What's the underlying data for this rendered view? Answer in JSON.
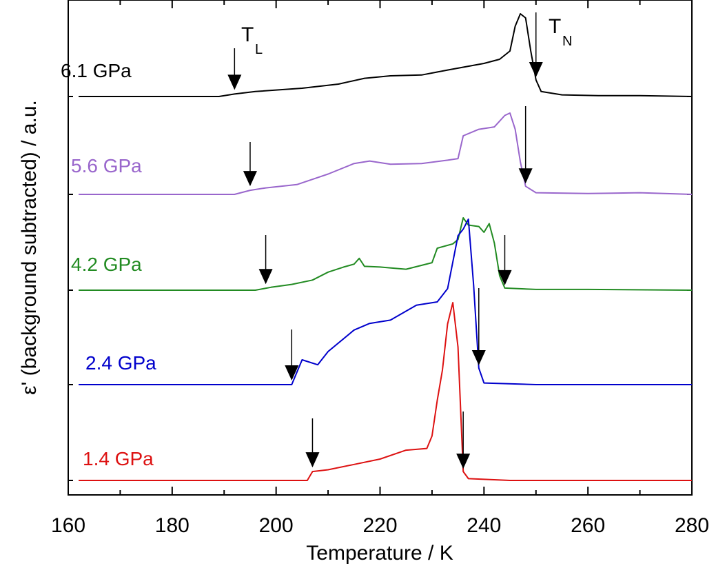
{
  "chart_data": {
    "type": "line",
    "title": "",
    "xlabel": "Temperature / K",
    "ylabel": "ε' (background subtracted) / a.u.",
    "xlim": [
      160,
      280
    ],
    "xticks": [
      160,
      180,
      200,
      220,
      240,
      260,
      280
    ],
    "xtick_labels": [
      "160",
      "180",
      "200",
      "220",
      "240",
      "260",
      "280"
    ],
    "grid": false,
    "y_ticks_labeled": false,
    "annotations": {
      "TL": "T",
      "TL_sub": "L",
      "TN": "T",
      "TN_sub": "N"
    },
    "series": [
      {
        "name": "6.1 GPa",
        "color": "#000000",
        "TL": 192,
        "TN": 250,
        "points": [
          [
            162,
            0
          ],
          [
            189,
            0
          ],
          [
            192,
            0.03
          ],
          [
            196,
            0.06
          ],
          [
            205,
            0.1
          ],
          [
            212,
            0.15
          ],
          [
            217,
            0.22
          ],
          [
            222,
            0.25
          ],
          [
            228,
            0.26
          ],
          [
            233,
            0.32
          ],
          [
            240,
            0.4
          ],
          [
            243,
            0.45
          ],
          [
            245,
            0.55
          ],
          [
            246,
            0.85
          ],
          [
            247,
            1.0
          ],
          [
            248,
            0.95
          ],
          [
            249,
            0.55
          ],
          [
            250,
            0.2
          ],
          [
            251,
            0.06
          ],
          [
            255,
            0.02
          ],
          [
            262,
            0.01
          ],
          [
            270,
            0.01
          ],
          [
            280,
            0
          ]
        ]
      },
      {
        "name": "5.6 GPa",
        "color": "#9966cc",
        "TL": 195,
        "TN": 248,
        "points": [
          [
            162,
            0
          ],
          [
            192,
            0
          ],
          [
            195,
            0.05
          ],
          [
            198,
            0.08
          ],
          [
            204,
            0.12
          ],
          [
            210,
            0.25
          ],
          [
            215,
            0.38
          ],
          [
            218,
            0.41
          ],
          [
            222,
            0.37
          ],
          [
            228,
            0.38
          ],
          [
            233,
            0.42
          ],
          [
            235,
            0.44
          ],
          [
            236,
            0.72
          ],
          [
            239,
            0.8
          ],
          [
            242,
            0.83
          ],
          [
            244,
            0.97
          ],
          [
            245,
            1.0
          ],
          [
            246,
            0.8
          ],
          [
            247,
            0.4
          ],
          [
            248,
            0.1
          ],
          [
            250,
            0.02
          ],
          [
            260,
            0.01
          ],
          [
            270,
            0.02
          ],
          [
            280,
            0
          ]
        ]
      },
      {
        "name": "4.2 GPa",
        "color": "#228b22",
        "TL": 198,
        "TN": 244,
        "points": [
          [
            162,
            0
          ],
          [
            196,
            0
          ],
          [
            199,
            0.04
          ],
          [
            203,
            0.08
          ],
          [
            207,
            0.14
          ],
          [
            210,
            0.25
          ],
          [
            213,
            0.32
          ],
          [
            215,
            0.36
          ],
          [
            216,
            0.44
          ],
          [
            217,
            0.33
          ],
          [
            220,
            0.32
          ],
          [
            225,
            0.29
          ],
          [
            230,
            0.38
          ],
          [
            231,
            0.58
          ],
          [
            234,
            0.64
          ],
          [
            235,
            0.7
          ],
          [
            236,
            1.0
          ],
          [
            237,
            0.9
          ],
          [
            239,
            0.88
          ],
          [
            240,
            0.8
          ],
          [
            241,
            0.92
          ],
          [
            242,
            0.65
          ],
          [
            243,
            0.2
          ],
          [
            244,
            0.03
          ],
          [
            250,
            0.01
          ],
          [
            260,
            0.01
          ],
          [
            280,
            0
          ]
        ]
      },
      {
        "name": "2.4 GPa",
        "color": "#0000cc",
        "TL": 203,
        "TN": 239,
        "points": [
          [
            162,
            0
          ],
          [
            203,
            0
          ],
          [
            205,
            0.15
          ],
          [
            208,
            0.12
          ],
          [
            210,
            0.2
          ],
          [
            215,
            0.33
          ],
          [
            218,
            0.37
          ],
          [
            222,
            0.39
          ],
          [
            227,
            0.48
          ],
          [
            231,
            0.5
          ],
          [
            233,
            0.58
          ],
          [
            235,
            0.9
          ],
          [
            236,
            0.94
          ],
          [
            237,
            1.0
          ],
          [
            238,
            0.6
          ],
          [
            239,
            0.1
          ],
          [
            240,
            0.01
          ],
          [
            250,
            0
          ],
          [
            280,
            0
          ]
        ]
      },
      {
        "name": "1.4 GPa",
        "color": "#dd1111",
        "TL": 207,
        "TN": 236,
        "points": [
          [
            162,
            0
          ],
          [
            206,
            0
          ],
          [
            207,
            0.05
          ],
          [
            210,
            0.06
          ],
          [
            215,
            0.09
          ],
          [
            220,
            0.12
          ],
          [
            225,
            0.17
          ],
          [
            229,
            0.18
          ],
          [
            230,
            0.25
          ],
          [
            231,
            0.45
          ],
          [
            232,
            0.62
          ],
          [
            233,
            0.88
          ],
          [
            234,
            1.0
          ],
          [
            235,
            0.75
          ],
          [
            236,
            0.05
          ],
          [
            237,
            0.01
          ],
          [
            245,
            0
          ],
          [
            280,
            0
          ]
        ]
      }
    ]
  }
}
